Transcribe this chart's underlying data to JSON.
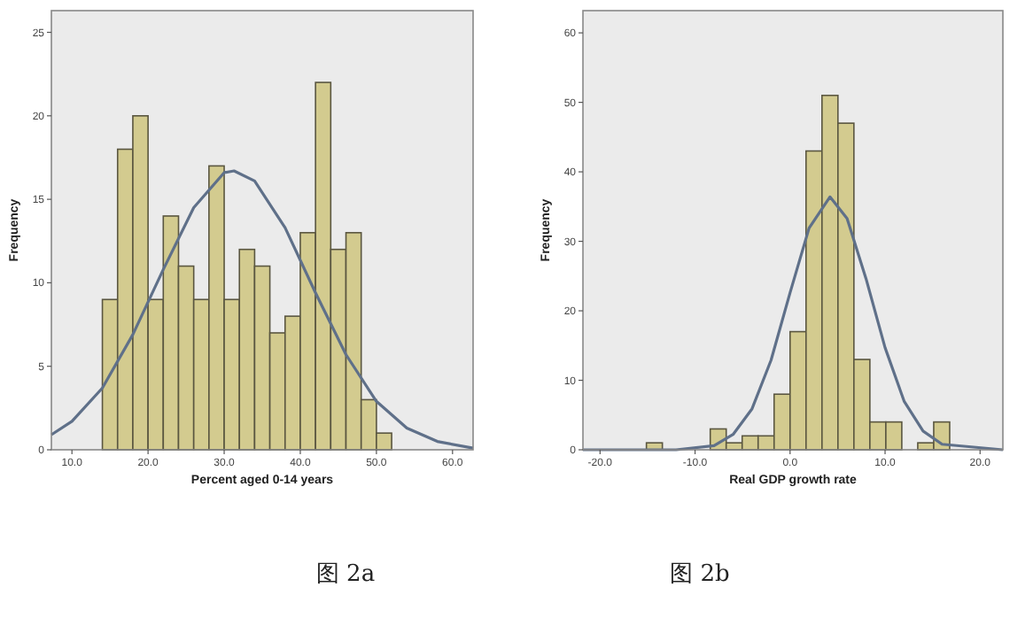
{
  "chart_data": [
    {
      "type": "histogram",
      "xlabel": "Percent aged 0-14 years",
      "ylabel": "Frequency",
      "color": "#d3cb8f",
      "bins": [
        14,
        16,
        18,
        20,
        22,
        24,
        26,
        28,
        30,
        32,
        34,
        36,
        38,
        40,
        42,
        44,
        46,
        48,
        50,
        52
      ],
      "values": [
        9,
        18,
        20,
        9,
        14,
        11,
        9,
        17,
        9,
        12,
        11,
        7,
        8,
        13,
        22,
        12,
        13,
        3,
        1
      ],
      "series": [
        {
          "type": "line",
          "color": "#5f7089",
          "x": [
            7.3,
            10,
            14,
            18,
            22,
            26,
            30,
            31.3,
            34,
            38,
            42,
            46,
            50,
            54,
            58,
            62.7
          ],
          "values": [
            0.9,
            1.7,
            3.7,
            6.9,
            10.8,
            14.5,
            16.6,
            16.7,
            16.1,
            13.3,
            9.4,
            5.7,
            2.9,
            1.3,
            0.5,
            0.1
          ]
        }
      ],
      "xlim": [
        7.3,
        62.7
      ],
      "ylim": [
        0,
        26.3
      ],
      "xticks": [
        {
          "value": 10,
          "label": "10.0"
        },
        {
          "value": 20,
          "label": "20.0"
        },
        {
          "value": 30,
          "label": "30.0"
        },
        {
          "value": 40,
          "label": "40.0"
        },
        {
          "value": 50,
          "label": "50.0"
        },
        {
          "value": 60,
          "label": "60.0"
        }
      ],
      "yticks": [
        0,
        5,
        10,
        15,
        20,
        25
      ],
      "annotations": [
        "图 2a"
      ]
    },
    {
      "type": "histogram",
      "xlabel": "Real GDP growth rate",
      "ylabel": "Frequency",
      "color": "#d3cb8f",
      "bins": [
        -15.12,
        -13.44,
        -11.76,
        -10.08,
        -8.4,
        -6.72,
        -5.04,
        -3.36,
        -1.68,
        0,
        1.68,
        3.36,
        5.04,
        6.72,
        8.4,
        10.08,
        11.76,
        13.44,
        15.12,
        16.8
      ],
      "values": [
        1,
        0,
        0,
        0,
        3,
        1,
        2,
        2,
        8,
        17,
        43,
        51,
        47,
        13,
        4,
        4,
        0,
        1,
        4
      ],
      "series": [
        {
          "type": "line",
          "color": "#5f7089",
          "x": [
            -21.8,
            -12,
            -8,
            -6,
            -4,
            -2,
            0,
            2,
            4.2,
            6,
            8,
            10,
            12,
            14,
            16,
            22.4
          ],
          "values": [
            0,
            0,
            0.6,
            2.2,
            5.9,
            12.9,
            22.6,
            31.9,
            36.4,
            33.3,
            24.6,
            14.7,
            7,
            2.7,
            0.8,
            0
          ]
        }
      ],
      "xlim": [
        -21.8,
        22.4
      ],
      "ylim": [
        0,
        63.2
      ],
      "xticks": [
        {
          "value": -20,
          "label": "-20.0"
        },
        {
          "value": -10,
          "label": "-10.0"
        },
        {
          "value": 0,
          "label": "0.0"
        },
        {
          "value": 10,
          "label": "10.0"
        },
        {
          "value": 20,
          "label": "20.0"
        }
      ],
      "yticks": [
        0,
        10,
        20,
        30,
        40,
        50,
        60
      ],
      "annotations": [
        "图 2b"
      ]
    }
  ]
}
